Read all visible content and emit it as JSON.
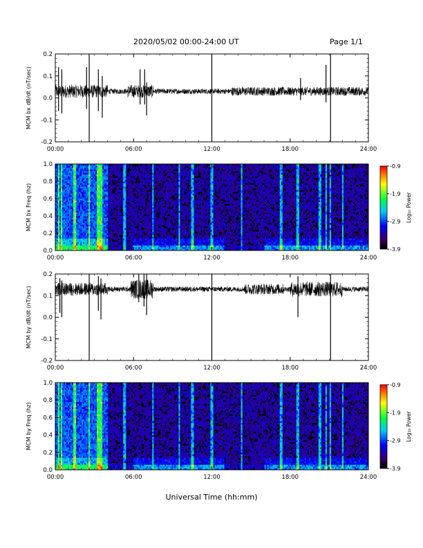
{
  "header": {
    "title": "2020/05/02  00:00-24:00 UT",
    "page": "Page 1/1"
  },
  "xaxis": {
    "label": "Universal Time (hh:mm)",
    "ticks": [
      "00:00",
      "06:00",
      "12:00",
      "18:00",
      "24:00"
    ],
    "range_hours": [
      0,
      24
    ]
  },
  "colorbar": {
    "label": "Log₁₀ Power",
    "ticks": [
      "-0.9",
      "-1.9",
      "-2.9",
      "-3.9"
    ],
    "range": [
      -3.9,
      -0.9
    ],
    "scale": "rainbow (black/purple -> blue -> cyan -> green -> yellow -> red)"
  },
  "chart_data": [
    {
      "type": "line",
      "id": "bx_dbdt",
      "ylabel": "MCM bx dB/dt (nT/sec)",
      "yticks": [
        "0.2",
        "0.1",
        "0.0",
        "-0.1",
        "-0.2"
      ],
      "ylim": [
        -0.2,
        0.2
      ],
      "baseline": 0.03,
      "noise_amplitude": 0.012,
      "spikes": [
        {
          "hour": 0.25,
          "min": -0.06,
          "max": 0.14
        },
        {
          "hour": 0.5,
          "min": -0.07,
          "max": 0.13
        },
        {
          "hour": 2.4,
          "min": -0.05,
          "max": 0.14
        },
        {
          "hour": 2.6,
          "min": -0.2,
          "max": 0.2
        },
        {
          "hour": 3.3,
          "min": -0.06,
          "max": 0.13
        },
        {
          "hour": 3.6,
          "min": -0.09,
          "max": 0.1
        },
        {
          "hour": 6.5,
          "min": -0.03,
          "max": 0.13
        },
        {
          "hour": 6.85,
          "min": -0.03,
          "max": 0.13
        },
        {
          "hour": 7.0,
          "min": -0.08,
          "max": 0.07
        },
        {
          "hour": 12.0,
          "min": -0.2,
          "max": 0.2
        },
        {
          "hour": 18.8,
          "min": -0.01,
          "max": 0.09
        },
        {
          "hour": 20.75,
          "min": -0.02,
          "max": 0.15
        },
        {
          "hour": 21.1,
          "min": -0.2,
          "max": 0.2
        }
      ],
      "active_intervals": [
        [
          0,
          4,
          0.03
        ],
        [
          5.5,
          7.5,
          0.03
        ],
        [
          13.5,
          24,
          0.02
        ]
      ]
    },
    {
      "type": "heatmap",
      "id": "bx_freq",
      "ylabel": "MCM bx Freq (hz)",
      "yticks": [
        "1.0",
        "0.8",
        "0.6",
        "0.4",
        "0.2",
        "0.0"
      ],
      "ylim": [
        0,
        1
      ],
      "zlim": [
        -3.9,
        -0.9
      ],
      "bright_columns_hours": [
        0.3,
        0.5,
        1.5,
        2.6,
        3.3,
        3.5,
        5.3,
        7.5,
        9.5,
        10.5,
        12.0,
        14.3,
        17.3,
        18.6,
        20.3,
        20.75,
        21.1,
        22.0
      ],
      "low_freq_enhancement": [
        [
          0,
          4
        ],
        [
          6,
          13
        ],
        [
          16,
          24
        ]
      ]
    },
    {
      "type": "line",
      "id": "by_dbdt",
      "ylabel": "MCM by dB/dt (nT/sec)",
      "yticks": [
        "0.2",
        "0.1",
        "0.0",
        "-0.1",
        "-0.2"
      ],
      "ylim": [
        -0.2,
        0.2
      ],
      "baseline": 0.13,
      "noise_amplitude": 0.012,
      "spikes": [
        {
          "hour": 0.35,
          "min": 0.02,
          "max": 0.18
        },
        {
          "hour": 0.5,
          "min": 0.0,
          "max": 0.17
        },
        {
          "hour": 2.6,
          "min": -0.2,
          "max": 0.2
        },
        {
          "hour": 3.3,
          "min": 0.03,
          "max": 0.19
        },
        {
          "hour": 3.5,
          "min": -0.01,
          "max": 0.18
        },
        {
          "hour": 6.4,
          "min": 0.07,
          "max": 0.2
        },
        {
          "hour": 6.8,
          "min": 0.05,
          "max": 0.2
        },
        {
          "hour": 7.0,
          "min": 0.01,
          "max": 0.2
        },
        {
          "hour": 12.0,
          "min": -0.2,
          "max": 0.2
        },
        {
          "hour": 18.6,
          "min": 0.0,
          "max": 0.19
        },
        {
          "hour": 21.1,
          "min": -0.2,
          "max": 0.2
        }
      ],
      "active_intervals": [
        [
          0,
          4,
          0.03
        ],
        [
          5.8,
          7.5,
          0.045
        ],
        [
          14.5,
          17.5,
          0.025
        ],
        [
          18,
          22,
          0.035
        ]
      ]
    },
    {
      "type": "heatmap",
      "id": "by_freq",
      "ylabel": "MCM by Freq (hz)",
      "yticks": [
        "1.0",
        "0.8",
        "0.6",
        "0.4",
        "0.2",
        "0.0"
      ],
      "ylim": [
        0,
        1
      ],
      "zlim": [
        -3.9,
        -0.9
      ],
      "bright_columns_hours": [
        0.3,
        0.5,
        1.5,
        2.6,
        3.3,
        3.5,
        5.3,
        7.5,
        9.5,
        10.5,
        12.0,
        14.3,
        17.3,
        18.6,
        20.3,
        20.75,
        21.1,
        22.0
      ],
      "low_freq_enhancement": [
        [
          0,
          4
        ],
        [
          6,
          13
        ],
        [
          16,
          24
        ]
      ]
    }
  ]
}
